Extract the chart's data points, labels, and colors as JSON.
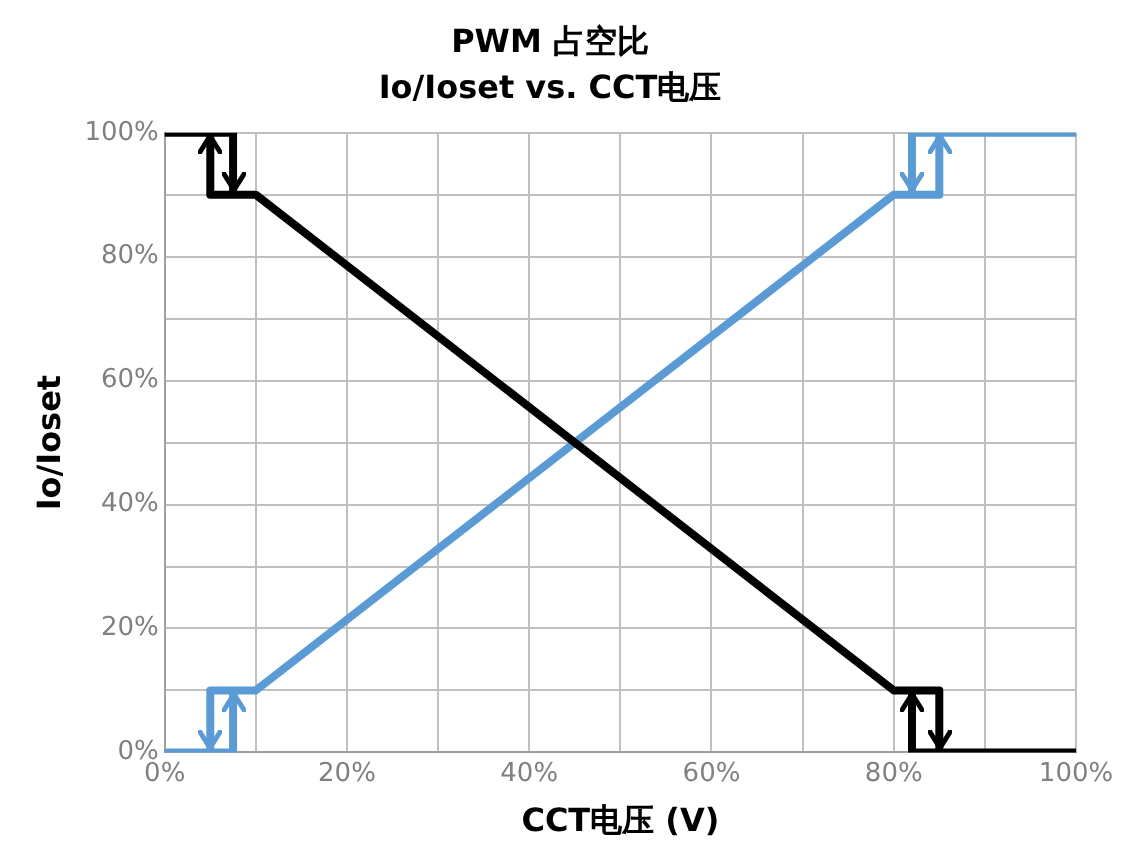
{
  "chart_data": {
    "type": "line",
    "title": "PWM 占空比",
    "subtitle": "Io/Ioset vs. CCT电压",
    "xlabel": "CCT电压 (V)",
    "ylabel": "Io/Ioset",
    "series": [
      {
        "color": "#000000",
        "x": [
          0,
          7.5,
          7.5,
          5,
          5,
          5,
          10,
          80,
          85,
          85,
          82,
          82,
          82,
          100
        ],
        "values": [
          100,
          100,
          90,
          90,
          100,
          90,
          90,
          10,
          10,
          0,
          0,
          10,
          0,
          0
        ]
      },
      {
        "color": "#5b9bd5",
        "x": [
          0,
          7.5,
          7.5,
          5,
          5,
          5,
          10,
          80,
          85,
          85,
          82,
          82,
          82,
          100
        ],
        "values": [
          0,
          0,
          10,
          10,
          0,
          10,
          10,
          90,
          90,
          100,
          100,
          90,
          100,
          100
        ]
      }
    ],
    "xlim": [
      0,
      100
    ],
    "ylim": [
      0,
      100
    ],
    "xticks": [
      {
        "value": 0,
        "label": "0%"
      },
      {
        "value": 10,
        "label": null
      },
      {
        "value": 20,
        "label": "20%"
      },
      {
        "value": 30,
        "label": null
      },
      {
        "value": 40,
        "label": "40%"
      },
      {
        "value": 50,
        "label": null
      },
      {
        "value": 60,
        "label": "60%"
      },
      {
        "value": 70,
        "label": null
      },
      {
        "value": 80,
        "label": "80%"
      },
      {
        "value": 90,
        "label": null
      },
      {
        "value": 100,
        "label": "100%"
      }
    ],
    "yticks": [
      {
        "value": 0,
        "label": "0%"
      },
      {
        "value": 10,
        "label": null
      },
      {
        "value": 20,
        "label": "20%"
      },
      {
        "value": 30,
        "label": null
      },
      {
        "value": 40,
        "label": "40%"
      },
      {
        "value": 50,
        "label": null
      },
      {
        "value": 60,
        "label": "60%"
      },
      {
        "value": 70,
        "label": null
      },
      {
        "value": 80,
        "label": "80%"
      },
      {
        "value": 90,
        "label": null
      },
      {
        "value": 100,
        "label": "100%"
      }
    ],
    "grid": true,
    "legend": false,
    "marker": "none",
    "line_style": "solid"
  }
}
